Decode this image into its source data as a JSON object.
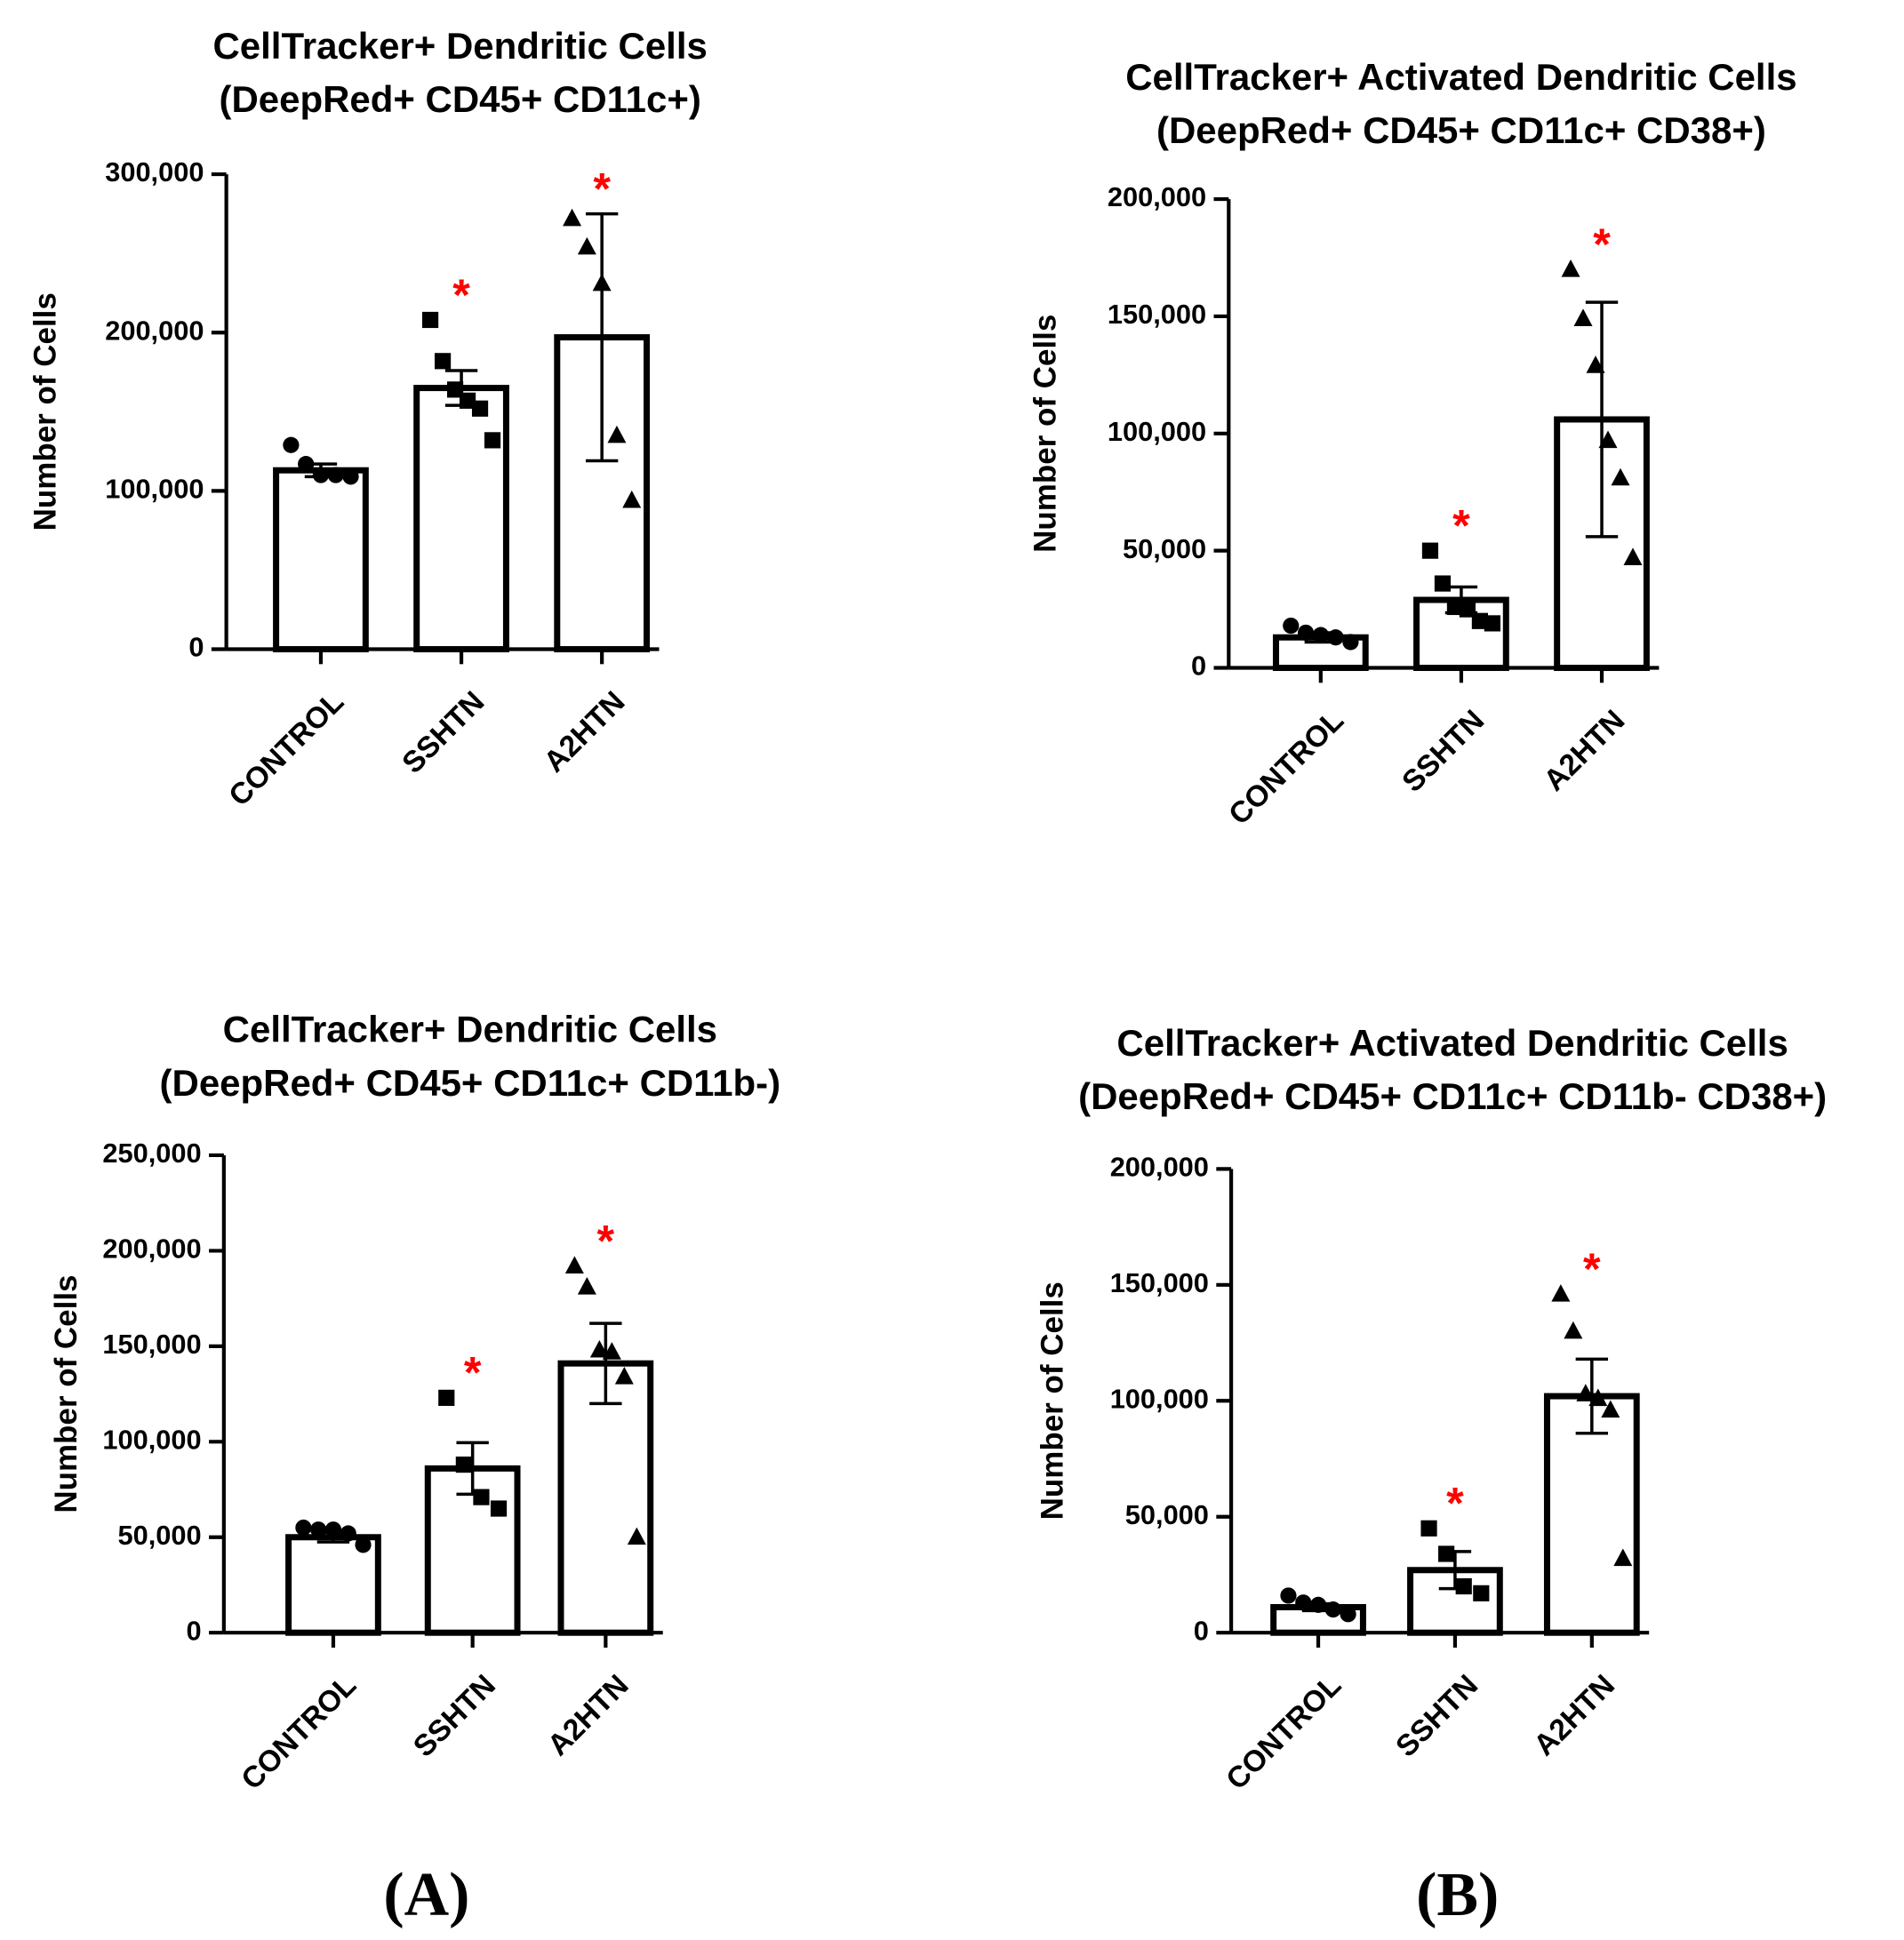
{
  "chart_data": [
    {
      "type": "bar",
      "title": "CellTracker+ Dendritic Cells",
      "subtitle": "(DeepRed+ CD45+ CD11c+)",
      "ylabel": "Number of  Cells",
      "categories": [
        "CONTROL",
        "SSHTN",
        "A2HTN"
      ],
      "values": [
        113000,
        165000,
        197000
      ],
      "errors": [
        4000,
        11000,
        78000
      ],
      "points": [
        [
          129000,
          117000,
          110000,
          110000,
          109000
        ],
        [
          208000,
          182000,
          164000,
          157000,
          152000,
          132000
        ],
        [
          272000,
          254000,
          231000,
          135000,
          94000
        ]
      ],
      "significance": [
        null,
        "*",
        "*"
      ],
      "markers": [
        "circle",
        "square",
        "triangle"
      ],
      "color": "#000000",
      "significance_color": "#ff0000",
      "ylim": [
        0,
        300000
      ],
      "yticks": [
        0,
        {
          "value": 100000,
          "label": "100,000"
        },
        {
          "value": 200000,
          "label": "200,000"
        },
        {
          "value": 300000,
          "label": "300,000"
        }
      ]
    },
    {
      "type": "bar",
      "title": "CellTracker+ Activated Dendritic Cells",
      "subtitle": "(DeepRed+ CD45+ CD11c+ CD38+)",
      "ylabel": "Number of  Cells",
      "categories": [
        "CONTROL",
        "SSHTN",
        "A2HTN"
      ],
      "values": [
        13000,
        29000,
        106000
      ],
      "errors": [
        2000,
        5500,
        50000
      ],
      "points": [
        [
          18000,
          15000,
          14000,
          13000,
          11000
        ],
        [
          50000,
          36000,
          26000,
          25000,
          20000,
          19000
        ],
        [
          170000,
          149000,
          129000,
          97000,
          81000,
          47000
        ]
      ],
      "significance": [
        null,
        "*",
        "*"
      ],
      "markers": [
        "circle",
        "square",
        "triangle"
      ],
      "color": "#000000",
      "significance_color": "#ff0000",
      "ylim": [
        0,
        200000
      ],
      "yticks": [
        0,
        {
          "value": 50000,
          "label": "50,000"
        },
        {
          "value": 100000,
          "label": "100,000"
        },
        {
          "value": 150000,
          "label": "150,000"
        },
        {
          "value": 200000,
          "label": "200,000"
        }
      ]
    },
    {
      "type": "bar",
      "title": "CellTracker+ Dendritic Cells",
      "subtitle": "(DeepRed+ CD45+ CD11c+ CD11b-)",
      "ylabel": "Number of  Cells",
      "categories": [
        "CONTROL",
        "SSHTN",
        "A2HTN"
      ],
      "values": [
        50000,
        86000,
        141000
      ],
      "errors": [
        2500,
        13500,
        21000
      ],
      "points": [
        [
          55000,
          54000,
          54000,
          52000,
          46000
        ],
        [
          123000,
          88000,
          71000,
          65000
        ],
        [
          192000,
          181000,
          148000,
          147000,
          134000,
          50000
        ]
      ],
      "significance": [
        null,
        "*",
        "*"
      ],
      "markers": [
        "circle",
        "square",
        "triangle"
      ],
      "color": "#000000",
      "significance_color": "#ff0000",
      "ylim": [
        0,
        250000
      ],
      "yticks": [
        0,
        {
          "value": 50000,
          "label": "50,000"
        },
        {
          "value": 100000,
          "label": "100,000"
        },
        {
          "value": 150000,
          "label": "150,000"
        },
        {
          "value": 200000,
          "label": "200,000"
        },
        {
          "value": 250000,
          "label": "250,000"
        }
      ]
    },
    {
      "type": "bar",
      "title": "CellTracker+ Activated Dendritic Cells",
      "subtitle": "(DeepRed+ CD45+ CD11c+ CD11b- CD38+)",
      "ylabel": "Number of Cells",
      "categories": [
        "CONTROL",
        "SSHTN",
        "A2HTN"
      ],
      "values": [
        11000,
        27000,
        102000
      ],
      "errors": [
        1500,
        8000,
        16000
      ],
      "points": [
        [
          16000,
          13000,
          12000,
          10000,
          8000
        ],
        [
          45000,
          34000,
          20000,
          17000
        ],
        [
          146000,
          130000,
          103000,
          101000,
          96000,
          32000
        ]
      ],
      "significance": [
        null,
        "*",
        "*"
      ],
      "markers": [
        "circle",
        "square",
        "triangle"
      ],
      "color": "#000000",
      "significance_color": "#ff0000",
      "ylim": [
        0,
        200000
      ],
      "yticks": [
        0,
        {
          "value": 50000,
          "label": "50,000"
        },
        {
          "value": 100000,
          "label": "100,000"
        },
        {
          "value": 150000,
          "label": "150,000"
        },
        {
          "value": 200000,
          "label": "200,000"
        }
      ]
    }
  ],
  "panel_labels": [
    "(A)",
    "(B)"
  ]
}
